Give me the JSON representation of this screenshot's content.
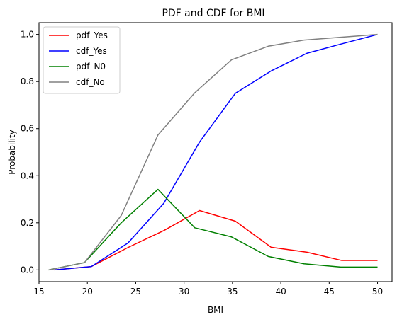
{
  "chart_data": {
    "type": "line",
    "title": "PDF and CDF for BMI",
    "xlabel": "BMI",
    "ylabel": "Probability",
    "xlim": [
      15,
      51.5
    ],
    "ylim": [
      -0.05,
      1.05
    ],
    "xticks": [
      15,
      20,
      25,
      30,
      35,
      40,
      45,
      50
    ],
    "yticks": [
      0.0,
      0.2,
      0.4,
      0.6,
      0.8,
      1.0
    ],
    "xtick_labels": [
      "15",
      "20",
      "25",
      "30",
      "35",
      "40",
      "45",
      "50"
    ],
    "ytick_labels": [
      "0.0",
      "0.2",
      "0.4",
      "0.6",
      "0.8",
      "1.0"
    ],
    "grid": false,
    "legend_position": "top-left",
    "series": [
      {
        "name": "pdf_Yes",
        "color": "#ff0000",
        "x": [
          16.6,
          20.4,
          24.2,
          27.9,
          31.6,
          35.3,
          39.0,
          42.7,
          46.3,
          50.0
        ],
        "y": [
          0.0,
          0.014,
          0.095,
          0.167,
          0.252,
          0.207,
          0.096,
          0.075,
          0.04,
          0.04
        ]
      },
      {
        "name": "cdf_Yes",
        "color": "#0000ff",
        "x": [
          16.6,
          20.4,
          24.2,
          27.9,
          31.6,
          35.3,
          39.0,
          42.7,
          46.3,
          50.0
        ],
        "y": [
          0.0,
          0.014,
          0.114,
          0.283,
          0.543,
          0.75,
          0.845,
          0.92,
          0.96,
          1.0
        ]
      },
      {
        "name": "pdf_N0",
        "color": "#008000",
        "x": [
          16.0,
          19.7,
          23.5,
          27.3,
          31.1,
          34.9,
          38.7,
          42.4,
          46.2,
          50.0
        ],
        "y": [
          0.0,
          0.031,
          0.2,
          0.342,
          0.179,
          0.14,
          0.057,
          0.026,
          0.012,
          0.012
        ]
      },
      {
        "name": "cdf_No",
        "color": "#808080",
        "x": [
          16.0,
          19.7,
          23.5,
          27.3,
          31.1,
          34.9,
          38.7,
          42.4,
          46.2,
          50.0
        ],
        "y": [
          0.0,
          0.031,
          0.231,
          0.573,
          0.752,
          0.892,
          0.95,
          0.976,
          0.988,
          1.0
        ]
      }
    ]
  }
}
